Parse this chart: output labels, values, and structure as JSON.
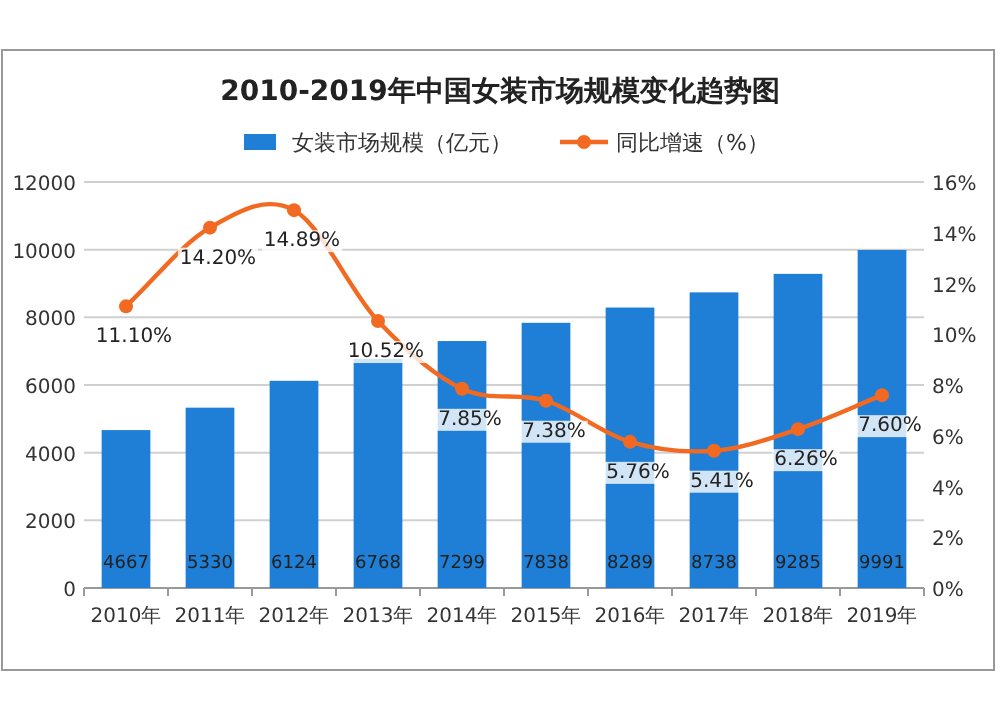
{
  "chart_data": {
    "type": "bar",
    "title": "2010-2019年中国女装市场规模变化趋势图",
    "categories": [
      "2010年",
      "2011年",
      "2012年",
      "2013年",
      "2014年",
      "2015年",
      "2016年",
      "2017年",
      "2018年",
      "2019年"
    ],
    "series": [
      {
        "name": "女装市场规模（亿元）",
        "color": "#1f7ed6",
        "values": [
          4667,
          5330,
          6124,
          6768,
          7299,
          7838,
          8289,
          8738,
          9285,
          9991
        ],
        "value_labels": [
          "4667",
          "5330",
          "6124",
          "6768",
          "7299",
          "7838",
          "8289",
          "8738",
          "9285",
          "9991"
        ]
      },
      {
        "name": "同比增速（%）",
        "type": "line",
        "axis": "y2",
        "color": "#f26a21",
        "marker": "circle",
        "values": [
          11.1,
          14.2,
          14.89,
          10.52,
          7.85,
          7.38,
          5.76,
          5.41,
          6.26,
          7.6
        ],
        "value_labels": [
          "11.10%",
          "14.20%",
          "14.89%",
          "10.52%",
          "7.85%",
          "7.38%",
          "5.76%",
          "5.41%",
          "6.26%",
          "7.60%"
        ]
      }
    ],
    "ylim": [
      0,
      12000
    ],
    "yticks": [
      0,
      2000,
      4000,
      6000,
      8000,
      10000,
      12000
    ],
    "y2lim": [
      0,
      16
    ],
    "y2ticks": [
      {
        "value": 0,
        "label": "0%"
      },
      {
        "value": 2,
        "label": "2%"
      },
      {
        "value": 4,
        "label": "4%"
      },
      {
        "value": 6,
        "label": "6%"
      },
      {
        "value": 8,
        "label": "8%"
      },
      {
        "value": 10,
        "label": "10%"
      },
      {
        "value": 12,
        "label": "12%"
      },
      {
        "value": 14,
        "label": "14%"
      },
      {
        "value": 16,
        "label": "16%"
      }
    ],
    "grid": "y",
    "legend": "top"
  }
}
